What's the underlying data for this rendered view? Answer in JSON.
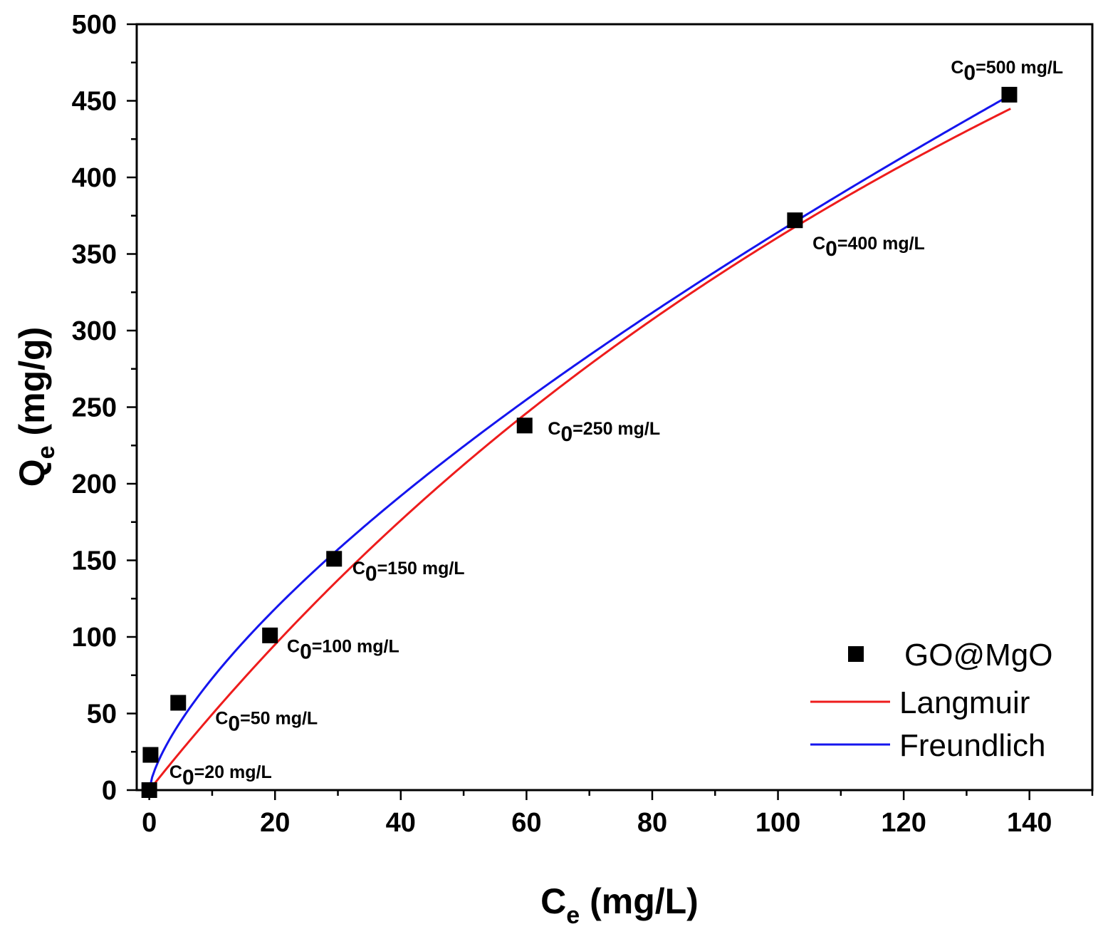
{
  "chart_data": {
    "type": "scatter",
    "xlabel": {
      "main": "C",
      "sub": "e",
      "unit": " (mg/L)"
    },
    "ylabel": {
      "main": "Q",
      "sub": "e",
      "unit": " (mg/g)"
    },
    "xlim": [
      -2,
      150
    ],
    "ylim": [
      0,
      500
    ],
    "x_ticks": [
      0,
      20,
      40,
      60,
      80,
      100,
      120,
      140
    ],
    "y_ticks": [
      0,
      50,
      100,
      150,
      200,
      250,
      300,
      350,
      400,
      450,
      500
    ],
    "x_minor_step": 10,
    "y_minor_step": 25,
    "series": [
      {
        "name": "GO@MgO",
        "kind": "points",
        "color": "#000000",
        "points": [
          {
            "x": 0,
            "y": 0
          },
          {
            "x": 0.2,
            "y": 23
          },
          {
            "x": 4.6,
            "y": 57
          },
          {
            "x": 19.2,
            "y": 101
          },
          {
            "x": 29.4,
            "y": 151
          },
          {
            "x": 59.7,
            "y": 238
          },
          {
            "x": 102.7,
            "y": 372
          },
          {
            "x": 136.8,
            "y": 454
          }
        ]
      },
      {
        "name": "Langmuir",
        "kind": "curve",
        "color": "#ee1c1c",
        "model": "langmuir",
        "params": {
          "qmax": 1200,
          "KL": 0.0043
        },
        "x_range": [
          0,
          137
        ]
      },
      {
        "name": "Freundlich",
        "kind": "curve",
        "color": "#1515ee",
        "model": "freundlich",
        "params": {
          "KF": 14.6,
          "n_inv": 0.6985
        },
        "x_range": [
          0,
          137
        ]
      }
    ],
    "annotations": [
      {
        "prefix": "C",
        "sub": "0",
        "text": "=20 mg/L",
        "x": 3.2,
        "y": 8
      },
      {
        "prefix": "C",
        "sub": "0",
        "text": "=50 mg/L",
        "x": 10.5,
        "y": 43
      },
      {
        "prefix": "C",
        "sub": "0",
        "text": "=100 mg/L",
        "x": 21.9,
        "y": 90
      },
      {
        "prefix": "C",
        "sub": "0",
        "text": "=150 mg/L",
        "x": 32.3,
        "y": 141
      },
      {
        "prefix": "C",
        "sub": "0",
        "text": "=250 mg/L",
        "x": 63.4,
        "y": 232
      },
      {
        "prefix": "C",
        "sub": "0",
        "text": "=400 mg/L",
        "x": 105.5,
        "y": 353
      },
      {
        "prefix": "C",
        "sub": "0",
        "text": "=500 mg/L",
        "x": 127.5,
        "y": 468
      }
    ],
    "legend": {
      "position": "bottom-right",
      "entries": [
        "GO@MgO",
        "Langmuir",
        "Freundlich"
      ]
    }
  }
}
